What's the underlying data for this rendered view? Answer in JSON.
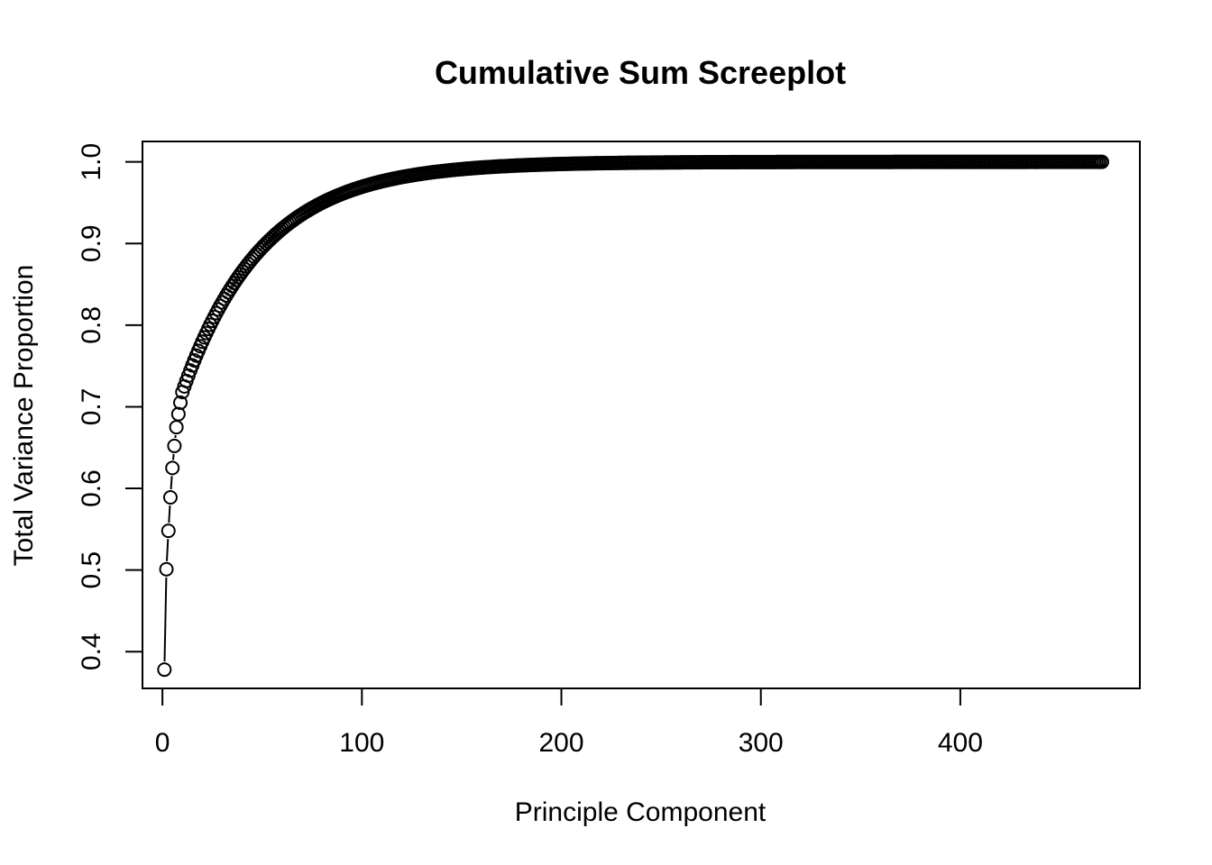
{
  "chart_data": {
    "type": "scatter",
    "title": "Cumulative Sum Screeplot",
    "xlabel": "Principle Component",
    "ylabel": "Total Variance Proportion",
    "xlim": [
      -10,
      490
    ],
    "ylim": [
      0.355,
      1.025
    ],
    "x_ticks": [
      0,
      100,
      200,
      300,
      400
    ],
    "y_ticks": [
      0.4,
      0.5,
      0.6,
      0.7,
      0.8,
      0.9,
      1.0
    ],
    "y_tick_labels": [
      "0.4",
      "0.5",
      "0.6",
      "0.7",
      "0.8",
      "0.9",
      "1.0"
    ],
    "n_points": 471,
    "leading_points": {
      "x": [
        1,
        2,
        3,
        4,
        5,
        6,
        7,
        8,
        9,
        10
      ],
      "y": [
        0.378,
        0.501,
        0.548,
        0.589,
        0.625,
        0.652,
        0.675,
        0.691,
        0.705,
        0.718
      ]
    },
    "curve_model": {
      "form": "y = 1 - (1 - y10) * exp(-k * (x - 10))",
      "y10": 0.718,
      "k": 0.0247
    },
    "grid": false,
    "legend": "none"
  }
}
